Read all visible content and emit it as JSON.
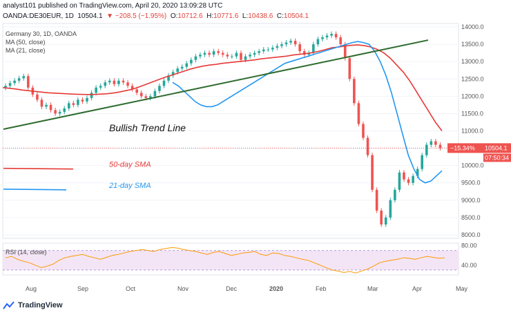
{
  "header": {
    "line1_prefix": "analyst101 published on TradingView.com, April 20, 2020 13:09:28 UTC",
    "symbol": "OANDA:DE30EUR, 1D",
    "last": "10504.1",
    "change": "▼ −208.5 (−1.95%)",
    "o_label": "O:",
    "o_val": "10712.6",
    "h_label": "H:",
    "h_val": "10771.6",
    "l_label": "L:",
    "l_val": "10438.6",
    "c_label": "C:",
    "c_val": "10504.1"
  },
  "legend": {
    "title": "Germany 30, 1D, OANDA",
    "ma50": "MA (50, close)",
    "ma21": "MA (21, close)",
    "rsi": "RSI (14, close)"
  },
  "annotations": {
    "trend": "Bullish Trend Line",
    "sma50": "50-day SMA",
    "sma21": "21-day SMA"
  },
  "badges": {
    "pct": "−15.34%",
    "price": "10504.1",
    "time": "07:50:34"
  },
  "colors": {
    "up": "#26a69a",
    "down": "#ef5350",
    "ma50": "#e53935",
    "ma21": "#2196f3",
    "trend": "#2e6b2e",
    "rsi": "#ff9800",
    "rsi_band": "#f3e5f5"
  },
  "footer": {
    "brand": "TradingView"
  },
  "chart_data": {
    "type": "candlestick",
    "y_axis": {
      "ticks": [
        8000,
        8500,
        9000,
        9500,
        10000,
        10500,
        11000,
        11500,
        12000,
        12500,
        13000,
        13500,
        14000
      ],
      "range": [
        7900,
        14100
      ]
    },
    "rsi_axis": {
      "ticks": [
        40,
        80
      ],
      "range": [
        20,
        85
      ],
      "band": [
        30,
        70
      ]
    },
    "x_ticks": [
      "Aug",
      "Sep",
      "Oct",
      "Nov",
      "Dec",
      "2020",
      "Feb",
      "Mar",
      "Apr",
      "May"
    ],
    "closes": [
      12300,
      12380,
      12450,
      12520,
      12580,
      12250,
      12050,
      11900,
      11700,
      11750,
      11600,
      11500,
      11550,
      11650,
      11800,
      11750,
      11900,
      11850,
      11950,
      12100,
      12250,
      12300,
      12400,
      12450,
      12350,
      12450,
      12400,
      12300,
      12200,
      12100,
      12000,
      11950,
      12000,
      12150,
      12300,
      12450,
      12600,
      12700,
      12800,
      12850,
      12950,
      13050,
      13150,
      13200,
      13250,
      13200,
      13300,
      13250,
      13200,
      13150,
      13150,
      13250,
      13050,
      13150,
      13200,
      13250,
      13300,
      13350,
      13350,
      13400,
      13450,
      13500,
      13550,
      13600,
      13500,
      13300,
      13200,
      13250,
      13500,
      13650,
      13700,
      13750,
      13800,
      13700,
      13500,
      13100,
      12500,
      11800,
      11200,
      10800,
      10300,
      9300,
      8700,
      8300,
      8500,
      9000,
      9300,
      9800,
      9600,
      9500,
      9700,
      9900,
      10300,
      10600,
      10700,
      10600,
      10500
    ],
    "ma50": [
      12250,
      12230,
      12210,
      12180,
      12160,
      12140,
      12120,
      12100,
      12090,
      12080,
      12070,
      12060,
      12055,
      12050,
      12050,
      12060,
      12070,
      12090,
      12120,
      12160,
      12200,
      12260,
      12330,
      12400,
      12470,
      12540,
      12600,
      12660,
      12720,
      12780,
      12830,
      12870,
      12900,
      12920,
      12950,
      12970,
      12990,
      13010,
      13030,
      13050,
      13080,
      13100,
      13120,
      13140,
      13160,
      13190,
      13210,
      13230,
      13260,
      13300,
      13350,
      13400,
      13420,
      13450,
      13470,
      13480,
      13460,
      13420,
      13350,
      13250,
      13100,
      12900,
      12700,
      12450,
      12150,
      11850,
      11550,
      11250,
      11000
    ],
    "ma21": [
      12400,
      12300,
      12150,
      12000,
      11850,
      11750,
      11700,
      11700,
      11750,
      11850,
      11950,
      12050,
      12150,
      12250,
      12350,
      12450,
      12550,
      12650,
      12750,
      12850,
      12950,
      13000,
      13050,
      13100,
      13150,
      13200,
      13250,
      13300,
      13350,
      13400,
      13450,
      13500,
      13550,
      13580,
      13550,
      13500,
      13300,
      13000,
      12600,
      12100,
      11500,
      10900,
      10300,
      9900,
      9600,
      9500,
      9550,
      9700,
      9850
    ],
    "rsi": [
      55,
      58,
      52,
      48,
      45,
      40,
      35,
      38,
      42,
      50,
      55,
      58,
      60,
      62,
      58,
      55,
      52,
      56,
      60,
      62,
      65,
      68,
      70,
      72,
      70,
      68,
      72,
      74,
      76,
      75,
      72,
      70,
      68,
      65,
      62,
      66,
      68,
      64,
      60,
      62,
      65,
      66,
      68,
      62,
      60,
      65,
      64,
      60,
      58,
      55,
      52,
      50,
      45,
      40,
      35,
      30,
      28,
      25,
      27,
      24,
      28,
      32,
      38,
      45,
      48,
      50,
      52,
      55,
      54,
      52,
      55,
      58,
      56,
      54,
      55
    ]
  }
}
